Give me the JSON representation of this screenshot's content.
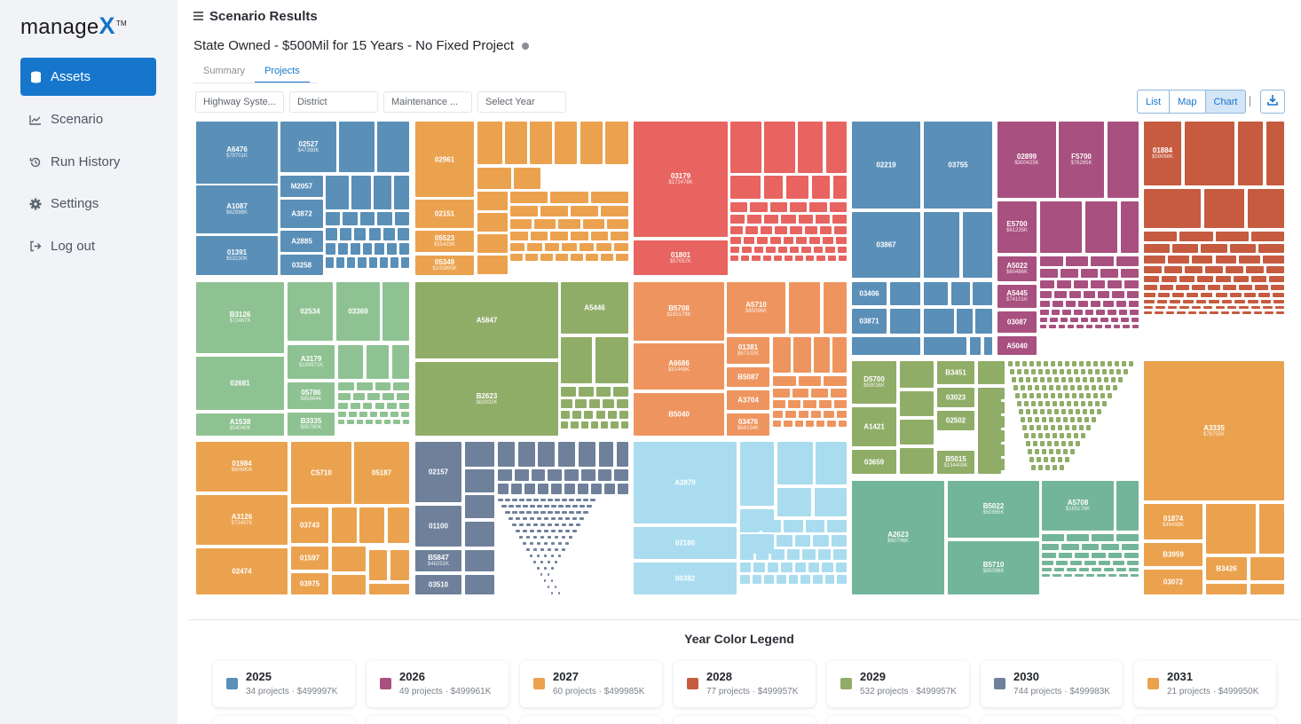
{
  "app": {
    "logo_text": "manage",
    "logo_accent": "X",
    "logo_mark": "TM"
  },
  "sidebar": {
    "items": [
      {
        "label": "Assets",
        "icon": "database-icon",
        "active": true
      },
      {
        "label": "Scenario",
        "icon": "chart-line-icon",
        "active": false
      },
      {
        "label": "Run History",
        "icon": "history-icon",
        "active": false
      },
      {
        "label": "Settings",
        "icon": "gear-icon",
        "active": false
      },
      {
        "label": "Log out",
        "icon": "logout-icon",
        "active": false
      }
    ]
  },
  "header": {
    "title": "Scenario Results",
    "scenario_name": "State Owned - $500Mil for 15 Years - No Fixed Project"
  },
  "tabs": [
    {
      "label": "Summary",
      "active": false
    },
    {
      "label": "Projects",
      "active": true
    }
  ],
  "filters": [
    {
      "label": "Highway Syste..."
    },
    {
      "label": "District"
    },
    {
      "label": "Maintenance ..."
    },
    {
      "label": "Select Year"
    }
  ],
  "view_toggle": [
    {
      "label": "List",
      "active": false
    },
    {
      "label": "Map",
      "active": false
    },
    {
      "label": "Chart",
      "active": true
    }
  ],
  "colors": {
    "accent": "#1676cc",
    "2025": "#5a8fb8",
    "2026": "#a8507f",
    "2027": "#eba24f",
    "2028": "#c65b3f",
    "2029": "#90ad68",
    "2030": "#6f819a",
    "2031": "#eba24f",
    "red": "#e76460",
    "lightblue": "#a9dcee",
    "teal": "#73b59a",
    "green": "#8fc293",
    "salmon": "#ee955f"
  },
  "treemap": {
    "labeled_tiles": [
      {
        "id": "A6476",
        "value": "$79701K"
      },
      {
        "id": "02527",
        "value": "$47398K"
      },
      {
        "id": "A1087",
        "value": "$62998K"
      },
      {
        "id": "M2057",
        "value": ""
      },
      {
        "id": "A3872",
        "value": ""
      },
      {
        "id": "01391",
        "value": "$53230K"
      },
      {
        "id": "A2885",
        "value": ""
      },
      {
        "id": "03258",
        "value": ""
      },
      {
        "id": "B3126",
        "value": "$72467K"
      },
      {
        "id": "02534",
        "value": ""
      },
      {
        "id": "03369",
        "value": ""
      },
      {
        "id": "02681",
        "value": ""
      },
      {
        "id": "A3179",
        "value": "$189971K"
      },
      {
        "id": "A1538",
        "value": "$54040K"
      },
      {
        "id": "05786",
        "value": "$95884K"
      },
      {
        "id": "B3335",
        "value": "$95780K"
      },
      {
        "id": "01984",
        "value": "$60680K"
      },
      {
        "id": "C5710",
        "value": ""
      },
      {
        "id": "05187",
        "value": ""
      },
      {
        "id": "A3126",
        "value": "$72467K"
      },
      {
        "id": "03743",
        "value": ""
      },
      {
        "id": "02474",
        "value": ""
      },
      {
        "id": "01597",
        "value": ""
      },
      {
        "id": "03975",
        "value": ""
      },
      {
        "id": "02961",
        "value": ""
      },
      {
        "id": "02151",
        "value": ""
      },
      {
        "id": "05523",
        "value": "$55425K"
      },
      {
        "id": "05349",
        "value": "$100895K"
      },
      {
        "id": "A5847",
        "value": ""
      },
      {
        "id": "A5446",
        "value": ""
      },
      {
        "id": "B2623",
        "value": "$63933K"
      },
      {
        "id": "02157",
        "value": ""
      },
      {
        "id": "01100",
        "value": ""
      },
      {
        "id": "B5847",
        "value": "$48251K"
      },
      {
        "id": "03510",
        "value": ""
      },
      {
        "id": "03179",
        "value": "$172478K"
      },
      {
        "id": "01801",
        "value": "$57057K"
      },
      {
        "id": "B5708",
        "value": "$165178K"
      },
      {
        "id": "A5710",
        "value": "$85096K"
      },
      {
        "id": "A6686",
        "value": "$51448K"
      },
      {
        "id": "01381",
        "value": "$67102K"
      },
      {
        "id": "B5040",
        "value": ""
      },
      {
        "id": "B5087",
        "value": ""
      },
      {
        "id": "A3704",
        "value": ""
      },
      {
        "id": "03476",
        "value": "$64154K"
      },
      {
        "id": "A2879",
        "value": ""
      },
      {
        "id": "02180",
        "value": ""
      },
      {
        "id": "00382",
        "value": ""
      },
      {
        "id": "02219",
        "value": ""
      },
      {
        "id": "03755",
        "value": ""
      },
      {
        "id": "03867",
        "value": ""
      },
      {
        "id": "03406",
        "value": ""
      },
      {
        "id": "03871",
        "value": ""
      },
      {
        "id": "02899",
        "value": "$300425K"
      },
      {
        "id": "F5700",
        "value": "$76265K"
      },
      {
        "id": "E5700",
        "value": "$61235K"
      },
      {
        "id": "A5022",
        "value": "$60486K"
      },
      {
        "id": "A5445",
        "value": "$74101K"
      },
      {
        "id": "03087",
        "value": ""
      },
      {
        "id": "A5040",
        "value": ""
      },
      {
        "id": "D5700",
        "value": "$69036K"
      },
      {
        "id": "B3451",
        "value": ""
      },
      {
        "id": "03023",
        "value": ""
      },
      {
        "id": "A1421",
        "value": ""
      },
      {
        "id": "02502",
        "value": ""
      },
      {
        "id": "03659",
        "value": ""
      },
      {
        "id": "B5015",
        "value": "$134408K"
      },
      {
        "id": "A2623",
        "value": "$60796K"
      },
      {
        "id": "B5022",
        "value": "$50865K"
      },
      {
        "id": "A5708",
        "value": "$165178K"
      },
      {
        "id": "B5710",
        "value": "$85096K"
      },
      {
        "id": "01884",
        "value": "$59068K"
      },
      {
        "id": "A3335",
        "value": "$78755K"
      },
      {
        "id": "01874",
        "value": "$49498K"
      },
      {
        "id": "B3959",
        "value": ""
      },
      {
        "id": "03072",
        "value": ""
      },
      {
        "id": "B3426",
        "value": ""
      }
    ]
  },
  "legend": {
    "title": "Year Color Legend",
    "items": [
      {
        "year": "2025",
        "meta": "34 projects · $499997K",
        "color": "#5a8fb8"
      },
      {
        "year": "2026",
        "meta": "49 projects · $499961K",
        "color": "#a8507f"
      },
      {
        "year": "2027",
        "meta": "60 projects · $499985K",
        "color": "#eba24f"
      },
      {
        "year": "2028",
        "meta": "77 projects · $499957K",
        "color": "#c65b3f"
      },
      {
        "year": "2029",
        "meta": "532 projects · $499957K",
        "color": "#90ad68"
      },
      {
        "year": "2030",
        "meta": "744 projects · $499983K",
        "color": "#6f819a"
      },
      {
        "year": "2031",
        "meta": "21 projects · $499950K",
        "color": "#eba24f"
      }
    ]
  }
}
